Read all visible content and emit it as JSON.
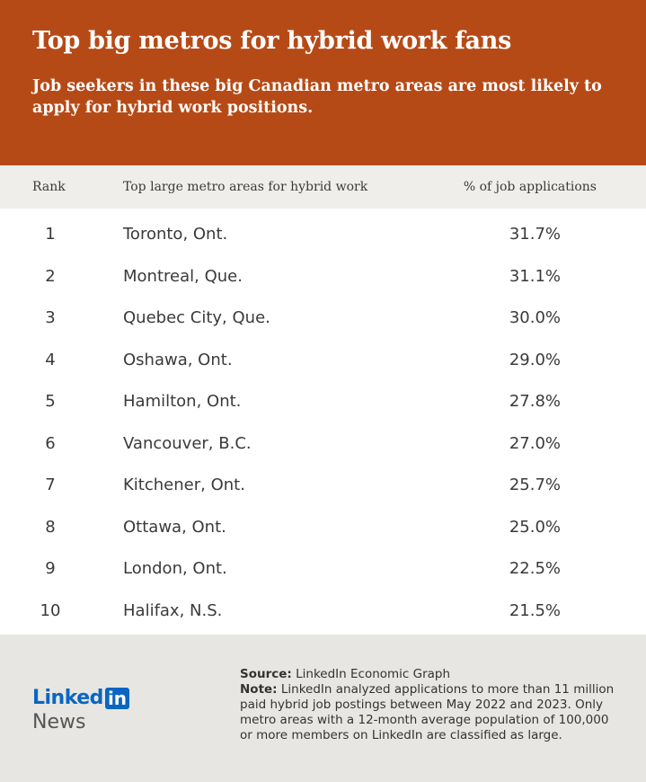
{
  "header": {
    "title": "Top big metros for hybrid work fans",
    "subtitle": "Job seekers in these big Canadian metro areas are most likely to apply for hybrid work positions."
  },
  "chart_data": {
    "type": "table",
    "columns": [
      "Rank",
      "Top large metro areas for hybrid work",
      "% of job applications"
    ],
    "rows": [
      {
        "rank": "1",
        "metro": "Toronto, Ont.",
        "pct": "31.7%"
      },
      {
        "rank": "2",
        "metro": "Montreal, Que.",
        "pct": "31.1%"
      },
      {
        "rank": "3",
        "metro": "Quebec City, Que.",
        "pct": "30.0%"
      },
      {
        "rank": "4",
        "metro": "Oshawa, Ont.",
        "pct": "29.0%"
      },
      {
        "rank": "5",
        "metro": "Hamilton, Ont.",
        "pct": "27.8%"
      },
      {
        "rank": "6",
        "metro": "Vancouver, B.C.",
        "pct": "27.0%"
      },
      {
        "rank": "7",
        "metro": "Kitchener, Ont.",
        "pct": "25.7%"
      },
      {
        "rank": "8",
        "metro": "Ottawa, Ont.",
        "pct": "25.0%"
      },
      {
        "rank": "9",
        "metro": "London, Ont.",
        "pct": "22.5%"
      },
      {
        "rank": "10",
        "metro": "Halifax, N.S.",
        "pct": "21.5%"
      }
    ]
  },
  "footer": {
    "source_label": "Source:",
    "source_text": "LinkedIn Economic Graph",
    "note_label": "Note:",
    "note_text": "LinkedIn analyzed applications to more than 11 million paid hybrid job postings between May 2022 and 2023. Only metro areas with a 12-month average population of 100,000 or more members on LinkedIn are classified as large.",
    "logo_word": "Linked",
    "logo_box": "in",
    "logo_news": "News"
  },
  "colors": {
    "header_bg": "#b64a16",
    "column_header_bg": "#efeeea",
    "footer_bg": "#e7e6e2",
    "linkedin_blue": "#0a66c2"
  }
}
